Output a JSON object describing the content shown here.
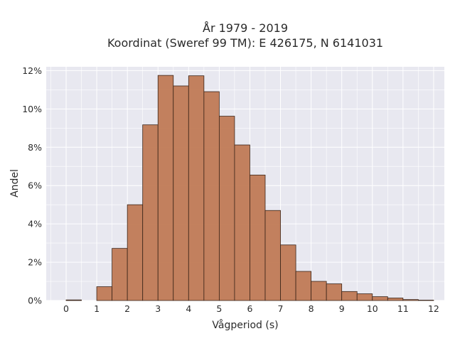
{
  "chart_data": {
    "type": "bar",
    "title_line1": "År 1979 - 2019",
    "title_line2": "Koordinat (Sweref 99 TM): E 426175, N 6141031",
    "xlabel": "Vågperiod (s)",
    "ylabel": "Andel",
    "x_ticks": [
      0,
      1,
      2,
      3,
      4,
      5,
      6,
      7,
      8,
      9,
      10,
      11,
      12
    ],
    "y_ticks": [
      0,
      2,
      4,
      6,
      8,
      10,
      12
    ],
    "y_tick_suffix": "%",
    "xlim": [
      -0.65,
      12.35
    ],
    "ylim": [
      0,
      12.2
    ],
    "bin_width": 0.5,
    "bins": [
      {
        "x0": 0.0,
        "value": 0.03
      },
      {
        "x0": 0.5,
        "value": 0.0
      },
      {
        "x0": 1.0,
        "value": 0.72
      },
      {
        "x0": 1.5,
        "value": 2.72
      },
      {
        "x0": 2.0,
        "value": 5.0
      },
      {
        "x0": 2.5,
        "value": 9.17
      },
      {
        "x0": 3.0,
        "value": 11.75
      },
      {
        "x0": 3.5,
        "value": 11.2
      },
      {
        "x0": 4.0,
        "value": 11.73
      },
      {
        "x0": 4.5,
        "value": 10.9
      },
      {
        "x0": 5.0,
        "value": 9.62
      },
      {
        "x0": 5.5,
        "value": 8.12
      },
      {
        "x0": 6.0,
        "value": 6.55
      },
      {
        "x0": 6.5,
        "value": 4.7
      },
      {
        "x0": 7.0,
        "value": 2.9
      },
      {
        "x0": 7.5,
        "value": 1.52
      },
      {
        "x0": 8.0,
        "value": 1.0
      },
      {
        "x0": 8.5,
        "value": 0.87
      },
      {
        "x0": 9.0,
        "value": 0.47
      },
      {
        "x0": 9.5,
        "value": 0.35
      },
      {
        "x0": 10.0,
        "value": 0.2
      },
      {
        "x0": 10.5,
        "value": 0.13
      },
      {
        "x0": 11.0,
        "value": 0.05
      },
      {
        "x0": 11.5,
        "value": 0.02
      }
    ],
    "grid": true,
    "bar_color": "#c07a55",
    "bar_edge_color": "#3a2418",
    "plot_bg": "#e8e8f0"
  }
}
